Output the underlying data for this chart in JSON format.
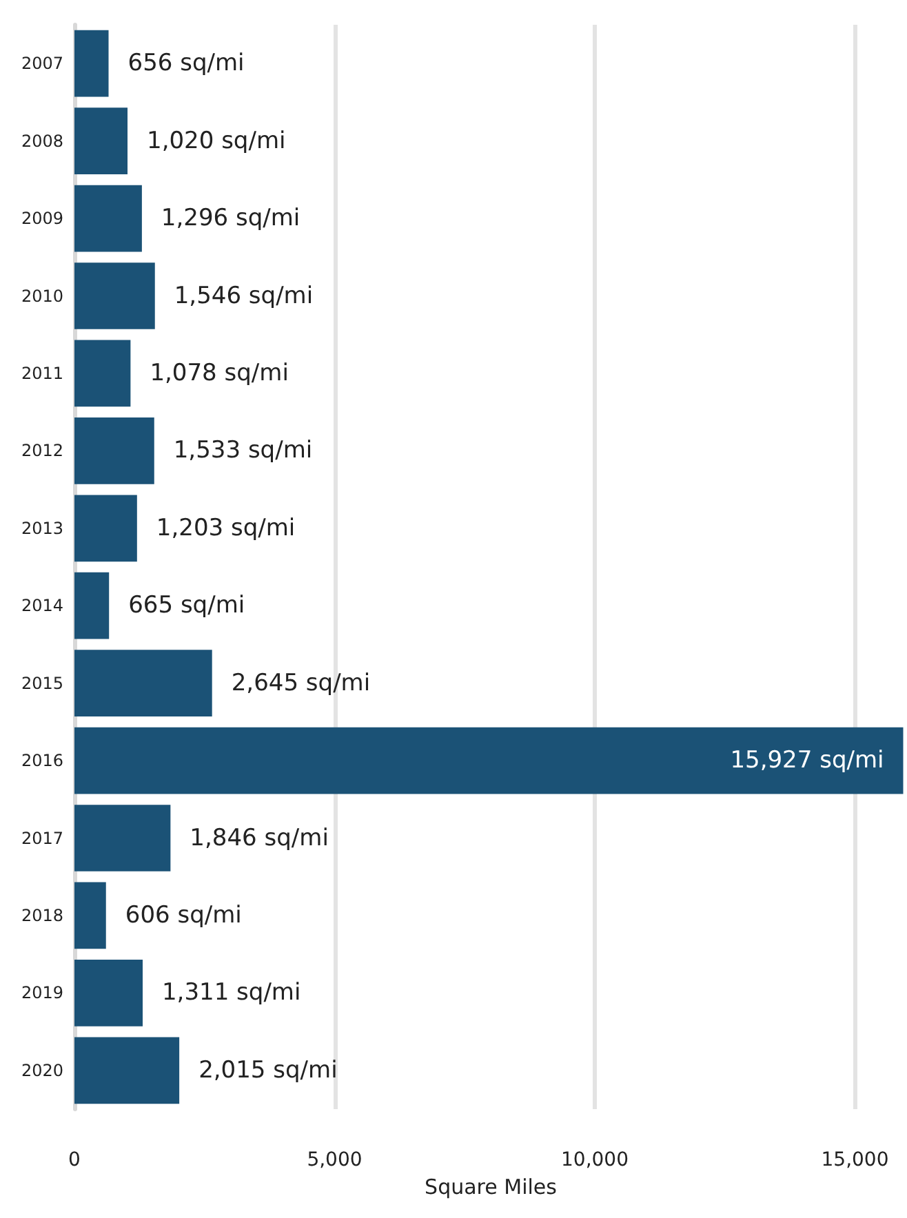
{
  "chart_data": {
    "type": "bar",
    "orientation": "horizontal",
    "xlabel": "Square Miles",
    "categories": [
      "2007",
      "2008",
      "2009",
      "2010",
      "2011",
      "2012",
      "2013",
      "2014",
      "2015",
      "2016",
      "2017",
      "2018",
      "2019",
      "2020"
    ],
    "values": [
      656,
      1020,
      1296,
      1546,
      1078,
      1533,
      1203,
      665,
      2645,
      15927,
      1846,
      606,
      1311,
      2015
    ],
    "value_labels": [
      "656 sq/mi",
      "1,020 sq/mi",
      "1,296 sq/mi",
      "1,546 sq/mi",
      "1,078 sq/mi",
      "1,533 sq/mi",
      "1,203 sq/mi",
      "665 sq/mi",
      "2,645 sq/mi",
      "15,927 sq/mi",
      "1,846 sq/mi",
      "606 sq/mi",
      "1,311 sq/mi",
      "2,015 sq/mi"
    ],
    "color": "#1b5276",
    "xlim": [
      0,
      16000
    ],
    "xticks": [
      {
        "value": 0,
        "label": "0"
      },
      {
        "value": 5000,
        "label": "5,000"
      },
      {
        "value": 10000,
        "label": "10,000"
      },
      {
        "value": 15000,
        "label": "15,000"
      }
    ],
    "grid": "x"
  }
}
